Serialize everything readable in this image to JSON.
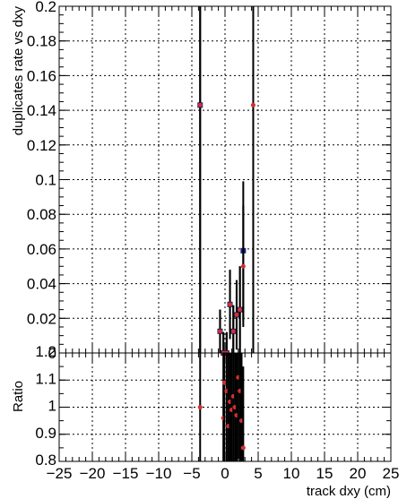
{
  "chart_data": [
    {
      "type": "scatter",
      "panel": "top",
      "ylabel": "duplicates rate vs dxy",
      "xlim": [
        -25,
        25
      ],
      "ylim": [
        0,
        0.2
      ],
      "grid": true,
      "yticks": [
        "0",
        "0.02",
        "0.04",
        "0.06",
        "0.08",
        "0.1",
        "0.12",
        "0.14",
        "0.16",
        "0.18",
        "0.2"
      ],
      "series": [
        {
          "color": "#1a237e",
          "marker": "square",
          "points": [
            {
              "x": -3.75,
              "y": 0.143,
              "err": 0.2
            },
            {
              "x": -0.75,
              "y": 0.0125,
              "err": 0.0125
            },
            {
              "x": -0.25,
              "y": 0.0,
              "err": 0.012
            },
            {
              "x": 0.25,
              "y": 0.0,
              "err": 0.012
            },
            {
              "x": 0.75,
              "y": 0.028,
              "err": 0.02
            },
            {
              "x": 1.25,
              "y": 0.0125,
              "err": 0.015
            },
            {
              "x": 1.75,
              "y": 0.022,
              "err": 0.02
            },
            {
              "x": 2.25,
              "y": 0.025,
              "err": 0.025
            },
            {
              "x": 2.75,
              "y": 0.059,
              "err": 0.04
            }
          ]
        },
        {
          "color": "#d32f2f",
          "marker": "circle",
          "points": [
            {
              "x": -3.75,
              "y": 0.143,
              "err": 0.2
            },
            {
              "x": -0.75,
              "y": 0.0125,
              "err": 0.0125
            },
            {
              "x": -0.25,
              "y": 0.0,
              "err": 0.012
            },
            {
              "x": 0.25,
              "y": 0.0,
              "err": 0.012
            },
            {
              "x": 0.75,
              "y": 0.028,
              "err": 0.02
            },
            {
              "x": 1.25,
              "y": 0.0125,
              "err": 0.015
            },
            {
              "x": 1.75,
              "y": 0.022,
              "err": 0.02
            },
            {
              "x": 2.25,
              "y": 0.025,
              "err": 0.025
            },
            {
              "x": 2.75,
              "y": 0.05,
              "err": 0.035
            },
            {
              "x": 4.25,
              "y": 0.143,
              "err": 0.2
            }
          ]
        }
      ]
    },
    {
      "type": "scatter",
      "panel": "bottom",
      "ylabel": "Ratio",
      "xlabel": "track dxy (cm)",
      "xlim": [
        -25,
        25
      ],
      "ylim": [
        0.8,
        1.2
      ],
      "grid": true,
      "xticks": [
        "−25",
        "−20",
        "−15",
        "−10",
        "−5",
        "0",
        "5",
        "10",
        "15",
        "20",
        "25"
      ],
      "yticks": [
        "0.8",
        "0.9",
        "1",
        "1.1",
        "1.2"
      ],
      "series": [
        {
          "color": "#d32f2f",
          "marker": "circle",
          "points": [
            {
              "x": -3.75,
              "y": 1.0,
              "err": 0.3
            },
            {
              "x": -0.25,
              "y": 0.96,
              "err": 0.3
            },
            {
              "x": -0.1,
              "y": 1.09,
              "err": 0.3
            },
            {
              "x": 0.25,
              "y": 1.06,
              "err": 0.3
            },
            {
              "x": 0.5,
              "y": 0.93,
              "err": 0.3
            },
            {
              "x": 0.75,
              "y": 1.02,
              "err": 0.3
            },
            {
              "x": 1.0,
              "y": 0.99,
              "err": 0.3
            },
            {
              "x": 1.25,
              "y": 1.04,
              "err": 0.3
            },
            {
              "x": 1.5,
              "y": 1.0,
              "err": 0.3
            },
            {
              "x": 1.75,
              "y": 0.97,
              "err": 0.3
            },
            {
              "x": 2.0,
              "y": 1.11,
              "err": 0.3
            },
            {
              "x": 2.25,
              "y": 1.06,
              "err": 0.3
            },
            {
              "x": 2.5,
              "y": 0.95,
              "err": 0.3
            },
            {
              "x": 2.75,
              "y": 0.85,
              "err": 0.3
            }
          ]
        }
      ]
    }
  ]
}
